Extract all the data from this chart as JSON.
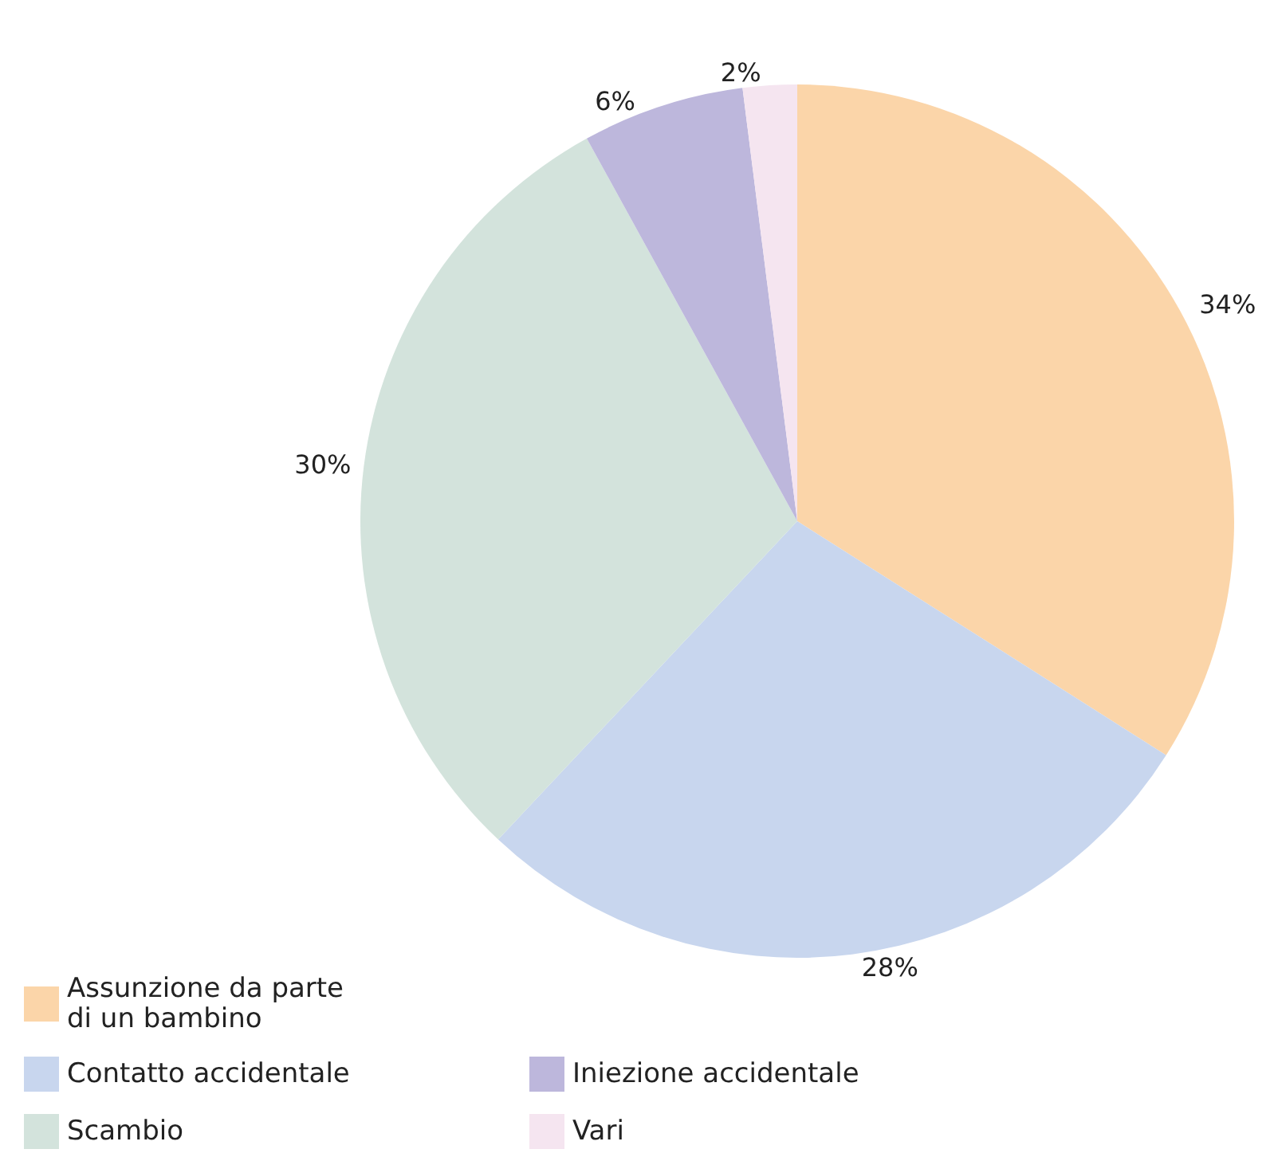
{
  "chart_data": {
    "type": "pie",
    "categories": [
      "Assunzione da parte di un bambino",
      "Contatto accidentale",
      "Scambio",
      "Iniezione accidentale",
      "Vari"
    ],
    "values": [
      34,
      28,
      30,
      6,
      2
    ],
    "value_labels": [
      "34%",
      "28%",
      "30%",
      "6%",
      "2%"
    ],
    "colors": [
      "#fbd5a9",
      "#c8d6ee",
      "#d3e3dc",
      "#bdb7dc",
      "#f5e5f0"
    ],
    "legend": "bottom left"
  }
}
